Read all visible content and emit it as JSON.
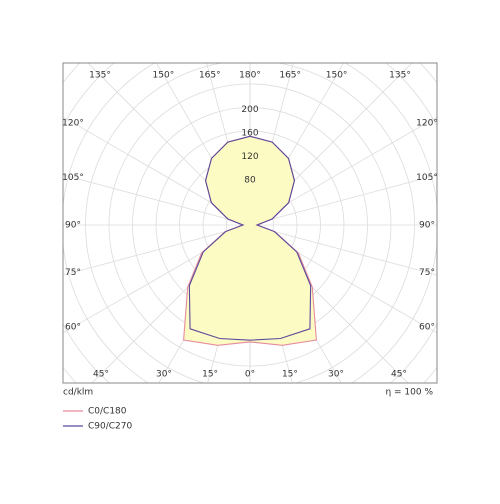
{
  "chart_data": {
    "type": "polar",
    "unit_label": "cd/klm",
    "efficiency_label": "η = 100 %",
    "angles": [
      0,
      15,
      30,
      45,
      60,
      75,
      90,
      105,
      120,
      135,
      150,
      165,
      180
    ],
    "series": [
      {
        "name": "C0/C180",
        "color": "#e68c9c",
        "values": [
          199,
          212,
          226,
          150,
          95,
          44,
          12,
          39,
          76,
          107,
          131,
          146,
          151
        ]
      },
      {
        "name": "C90/C270",
        "color": "#5a4a9c",
        "values": [
          196,
          200,
          204,
          146,
          92,
          43,
          12,
          39,
          76,
          107,
          131,
          146,
          151
        ]
      }
    ],
    "rlim": [
      0,
      420
    ],
    "rticks": [
      80,
      120,
      160,
      200
    ],
    "angle_ticks": [
      {
        "value": 0,
        "label": "0°"
      },
      {
        "value": 15,
        "label": "15°"
      },
      {
        "value": 30,
        "label": "30°"
      },
      {
        "value": 45,
        "label": "45°"
      },
      {
        "value": 60,
        "label": "60°"
      },
      {
        "value": 75,
        "label": "75°"
      },
      {
        "value": 90,
        "label": "90°"
      },
      {
        "value": 105,
        "label": "105°"
      },
      {
        "value": 120,
        "label": "120°"
      },
      {
        "value": 135,
        "label": "135°"
      },
      {
        "value": 150,
        "label": "150°"
      },
      {
        "value": 165,
        "label": "165°"
      },
      {
        "value": 180,
        "label": "180°"
      }
    ],
    "grid": true,
    "fill_color": "#fdfbc4"
  }
}
